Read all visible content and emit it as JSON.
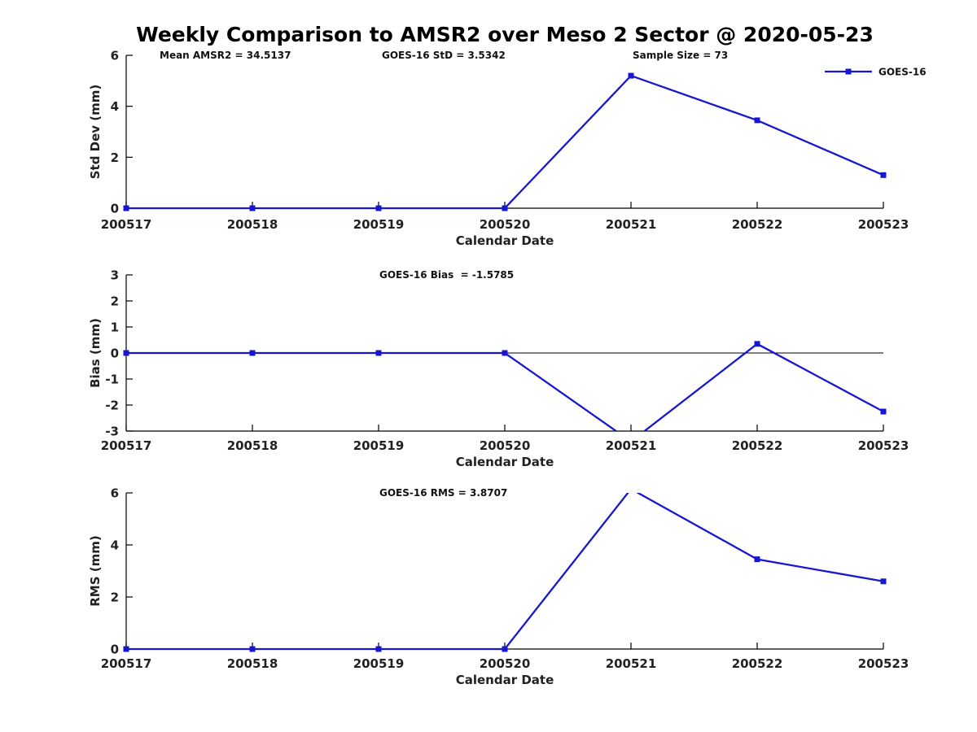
{
  "title": "Weekly Comparison to AMSR2 over Meso 2 Sector @ 2020-05-23",
  "legend": {
    "label": "GOES-16"
  },
  "colors": {
    "line": "#1717d2",
    "axis": "#000000",
    "tick_text": "#212121",
    "annotation_text": "#111111"
  },
  "chart_data": [
    {
      "type": "line",
      "id": "std-dev",
      "ylabel": "Std Dev (mm)",
      "xlabel": "Calendar Date",
      "ylim": [
        0,
        6
      ],
      "yticks": [
        "0",
        "2",
        "4",
        "6"
      ],
      "ytick_values": [
        0,
        2,
        4,
        6
      ],
      "categories": [
        "200517",
        "200518",
        "200519",
        "200520",
        "200521",
        "200522",
        "200523"
      ],
      "series": [
        {
          "name": "GOES-16",
          "values": [
            0,
            0,
            0,
            0,
            5.2,
            3.45,
            1.3
          ]
        }
      ],
      "annotations": [
        "Mean AMSR2 = 34.5137",
        "GOES-16 StD = 3.5342",
        "Sample Size = 73"
      ],
      "legend_position": "top-right",
      "grid": false,
      "zero_line": false
    },
    {
      "type": "line",
      "id": "bias",
      "ylabel": "Bias (mm)",
      "xlabel": "Calendar Date",
      "ylim": [
        -3,
        3
      ],
      "yticks": [
        "3",
        "2",
        "1",
        "0",
        "-1",
        "-2",
        "-3"
      ],
      "ytick_values": [
        3,
        2,
        1,
        0,
        -1,
        -2,
        -3
      ],
      "categories": [
        "200517",
        "200518",
        "200519",
        "200520",
        "200521",
        "200522",
        "200523"
      ],
      "series": [
        {
          "name": "GOES-16",
          "values": [
            0,
            0,
            0,
            0,
            -3.4,
            0.35,
            -2.25
          ]
        }
      ],
      "annotations": [
        "GOES-16 Bias  = -1.5785"
      ],
      "legend_position": "none",
      "grid": false,
      "zero_line": true
    },
    {
      "type": "line",
      "id": "rms",
      "ylabel": "RMS (mm)",
      "xlabel": "Calendar Date",
      "ylim": [
        0,
        6
      ],
      "yticks": [
        "0",
        "2",
        "4",
        "6"
      ],
      "ytick_values": [
        0,
        2,
        4,
        6
      ],
      "categories": [
        "200517",
        "200518",
        "200519",
        "200520",
        "200521",
        "200522",
        "200523"
      ],
      "series": [
        {
          "name": "GOES-16",
          "values": [
            0,
            0,
            0,
            0,
            6.15,
            3.45,
            2.6
          ]
        }
      ],
      "annotations": [
        "GOES-16 RMS = 3.8707"
      ],
      "legend_position": "none",
      "grid": false,
      "zero_line": false
    }
  ]
}
